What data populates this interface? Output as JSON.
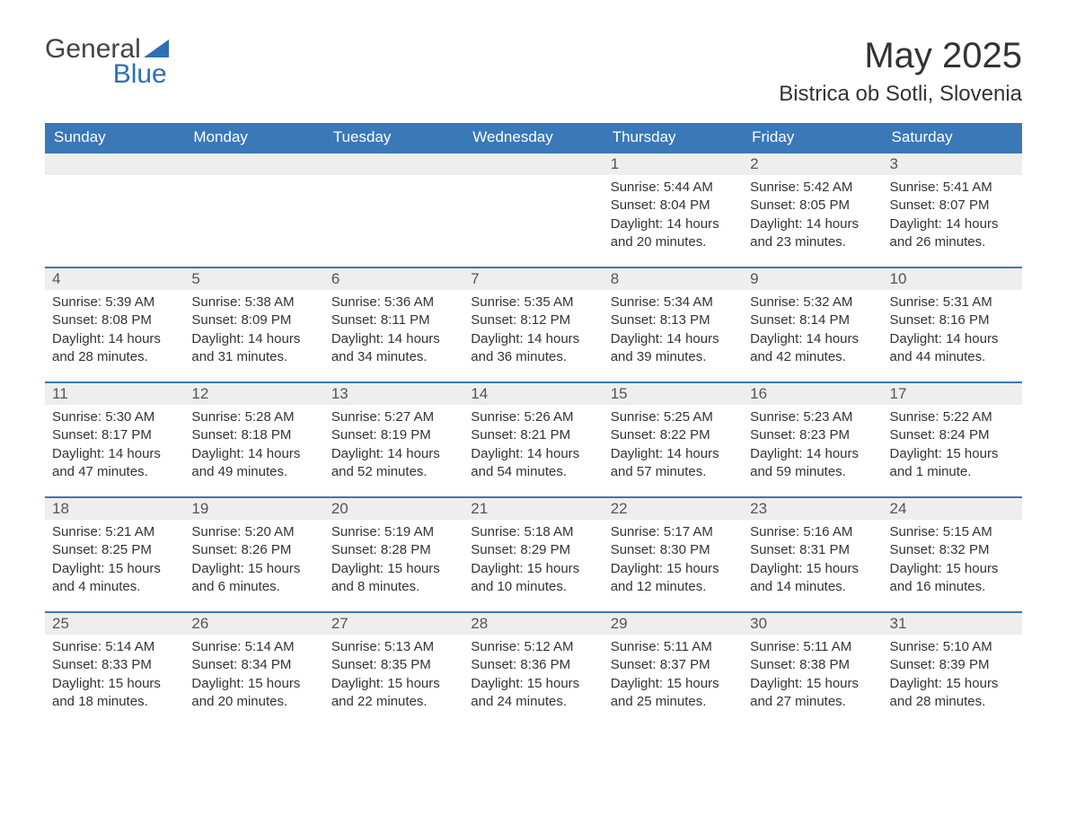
{
  "logo": {
    "line1": "General",
    "line2": "Blue"
  },
  "title": "May 2025",
  "location": "Bistrica ob Sotli, Slovenia",
  "colors": {
    "header_bg": "#3a78b8",
    "header_text": "#ffffff",
    "daynum_bg": "#eeeeee",
    "body_text": "#333333",
    "accent": "#2d6fb6"
  },
  "weekdays": [
    "Sunday",
    "Monday",
    "Tuesday",
    "Wednesday",
    "Thursday",
    "Friday",
    "Saturday"
  ],
  "labels": {
    "sunrise": "Sunrise: ",
    "sunset": "Sunset: ",
    "daylight": "Daylight: "
  },
  "weeks": [
    [
      null,
      null,
      null,
      null,
      {
        "day": "1",
        "sunrise": "5:44 AM",
        "sunset": "8:04 PM",
        "daylight": "14 hours and 20 minutes."
      },
      {
        "day": "2",
        "sunrise": "5:42 AM",
        "sunset": "8:05 PM",
        "daylight": "14 hours and 23 minutes."
      },
      {
        "day": "3",
        "sunrise": "5:41 AM",
        "sunset": "8:07 PM",
        "daylight": "14 hours and 26 minutes."
      }
    ],
    [
      {
        "day": "4",
        "sunrise": "5:39 AM",
        "sunset": "8:08 PM",
        "daylight": "14 hours and 28 minutes."
      },
      {
        "day": "5",
        "sunrise": "5:38 AM",
        "sunset": "8:09 PM",
        "daylight": "14 hours and 31 minutes."
      },
      {
        "day": "6",
        "sunrise": "5:36 AM",
        "sunset": "8:11 PM",
        "daylight": "14 hours and 34 minutes."
      },
      {
        "day": "7",
        "sunrise": "5:35 AM",
        "sunset": "8:12 PM",
        "daylight": "14 hours and 36 minutes."
      },
      {
        "day": "8",
        "sunrise": "5:34 AM",
        "sunset": "8:13 PM",
        "daylight": "14 hours and 39 minutes."
      },
      {
        "day": "9",
        "sunrise": "5:32 AM",
        "sunset": "8:14 PM",
        "daylight": "14 hours and 42 minutes."
      },
      {
        "day": "10",
        "sunrise": "5:31 AM",
        "sunset": "8:16 PM",
        "daylight": "14 hours and 44 minutes."
      }
    ],
    [
      {
        "day": "11",
        "sunrise": "5:30 AM",
        "sunset": "8:17 PM",
        "daylight": "14 hours and 47 minutes."
      },
      {
        "day": "12",
        "sunrise": "5:28 AM",
        "sunset": "8:18 PM",
        "daylight": "14 hours and 49 minutes."
      },
      {
        "day": "13",
        "sunrise": "5:27 AM",
        "sunset": "8:19 PM",
        "daylight": "14 hours and 52 minutes."
      },
      {
        "day": "14",
        "sunrise": "5:26 AM",
        "sunset": "8:21 PM",
        "daylight": "14 hours and 54 minutes."
      },
      {
        "day": "15",
        "sunrise": "5:25 AM",
        "sunset": "8:22 PM",
        "daylight": "14 hours and 57 minutes."
      },
      {
        "day": "16",
        "sunrise": "5:23 AM",
        "sunset": "8:23 PM",
        "daylight": "14 hours and 59 minutes."
      },
      {
        "day": "17",
        "sunrise": "5:22 AM",
        "sunset": "8:24 PM",
        "daylight": "15 hours and 1 minute."
      }
    ],
    [
      {
        "day": "18",
        "sunrise": "5:21 AM",
        "sunset": "8:25 PM",
        "daylight": "15 hours and 4 minutes."
      },
      {
        "day": "19",
        "sunrise": "5:20 AM",
        "sunset": "8:26 PM",
        "daylight": "15 hours and 6 minutes."
      },
      {
        "day": "20",
        "sunrise": "5:19 AM",
        "sunset": "8:28 PM",
        "daylight": "15 hours and 8 minutes."
      },
      {
        "day": "21",
        "sunrise": "5:18 AM",
        "sunset": "8:29 PM",
        "daylight": "15 hours and 10 minutes."
      },
      {
        "day": "22",
        "sunrise": "5:17 AM",
        "sunset": "8:30 PM",
        "daylight": "15 hours and 12 minutes."
      },
      {
        "day": "23",
        "sunrise": "5:16 AM",
        "sunset": "8:31 PM",
        "daylight": "15 hours and 14 minutes."
      },
      {
        "day": "24",
        "sunrise": "5:15 AM",
        "sunset": "8:32 PM",
        "daylight": "15 hours and 16 minutes."
      }
    ],
    [
      {
        "day": "25",
        "sunrise": "5:14 AM",
        "sunset": "8:33 PM",
        "daylight": "15 hours and 18 minutes."
      },
      {
        "day": "26",
        "sunrise": "5:14 AM",
        "sunset": "8:34 PM",
        "daylight": "15 hours and 20 minutes."
      },
      {
        "day": "27",
        "sunrise": "5:13 AM",
        "sunset": "8:35 PM",
        "daylight": "15 hours and 22 minutes."
      },
      {
        "day": "28",
        "sunrise": "5:12 AM",
        "sunset": "8:36 PM",
        "daylight": "15 hours and 24 minutes."
      },
      {
        "day": "29",
        "sunrise": "5:11 AM",
        "sunset": "8:37 PM",
        "daylight": "15 hours and 25 minutes."
      },
      {
        "day": "30",
        "sunrise": "5:11 AM",
        "sunset": "8:38 PM",
        "daylight": "15 hours and 27 minutes."
      },
      {
        "day": "31",
        "sunrise": "5:10 AM",
        "sunset": "8:39 PM",
        "daylight": "15 hours and 28 minutes."
      }
    ]
  ]
}
